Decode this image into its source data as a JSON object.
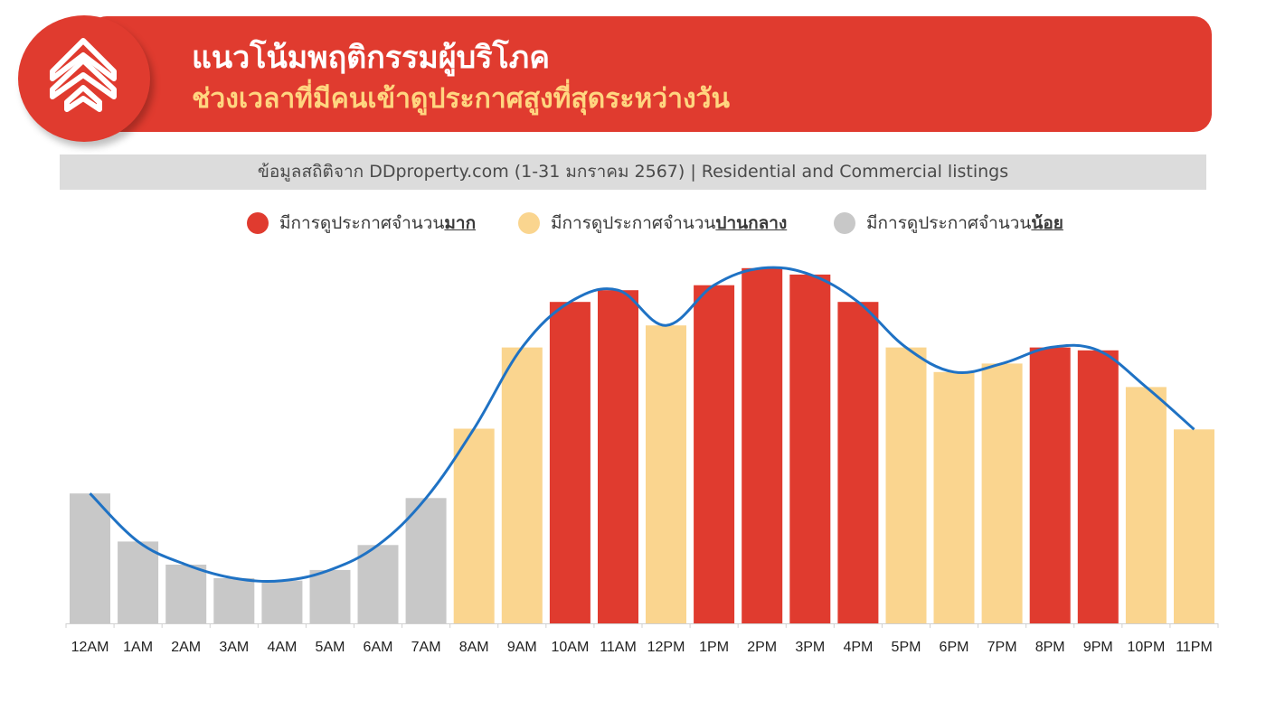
{
  "header": {
    "title": "แนวโน้มพฤติกรรมผู้บริโภค",
    "subtitle": "ช่วงเวลาที่มีคนเข้าดูประกาศสูงที่สุดระหว่างวัน",
    "logo_icon": "ddproperty-logo-icon"
  },
  "source": {
    "text": "ข้อมูลสถิติจาก DDproperty.com (1-31 มกราคม 2567) | Residential and Commercial listings"
  },
  "legend": [
    {
      "prefix": "มีการดูประกาศจำนวน",
      "strong": "มาก",
      "color": "#e03b2f"
    },
    {
      "prefix": "มีการดูประกาศจำนวน",
      "strong": "ปานกลาง",
      "color": "#fad58f"
    },
    {
      "prefix": "มีการดูประกาศจำนวน",
      "strong": "น้อย",
      "color": "#c8c8c8"
    }
  ],
  "colors": {
    "high": "#e03b2f",
    "medium": "#fad58f",
    "low": "#c8c8c8",
    "trend": "#1f72c4"
  },
  "chart_data": {
    "type": "bar",
    "categories": [
      "12AM",
      "1AM",
      "2AM",
      "3AM",
      "4AM",
      "5AM",
      "6AM",
      "7AM",
      "8AM",
      "9AM",
      "10AM",
      "11AM",
      "12PM",
      "1PM",
      "2PM",
      "3PM",
      "4PM",
      "5PM",
      "6PM",
      "7PM",
      "8PM",
      "9PM",
      "10PM",
      "11PM"
    ],
    "values": [
      36.5,
      23,
      16.5,
      12.7,
      12,
      15,
      22,
      35.2,
      54.7,
      77.5,
      90.3,
      93.6,
      83.7,
      95,
      99.8,
      98,
      90.3,
      77.5,
      70.6,
      73,
      77.5,
      76.7,
      66.4,
      54.5
    ],
    "levels": [
      "low",
      "low",
      "low",
      "low",
      "low",
      "low",
      "low",
      "low",
      "medium",
      "medium",
      "high",
      "high",
      "medium",
      "high",
      "high",
      "high",
      "high",
      "medium",
      "medium",
      "medium",
      "high",
      "high",
      "medium",
      "medium"
    ],
    "trend_line": [
      36.5,
      23,
      16.5,
      12.7,
      12,
      15,
      22,
      35.2,
      54.7,
      77.5,
      90.3,
      93.6,
      83.7,
      95,
      99.8,
      98,
      90.3,
      77.5,
      70.6,
      73,
      77.5,
      76.7,
      66.4,
      54.5
    ],
    "ylim": [
      0,
      100
    ],
    "grid": false,
    "legend_position": "top-center"
  }
}
